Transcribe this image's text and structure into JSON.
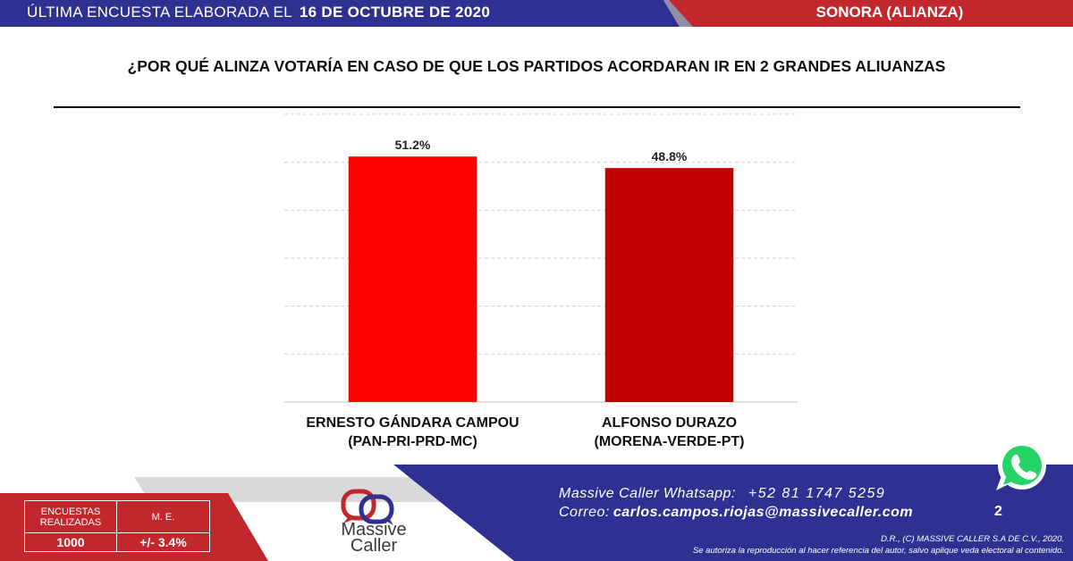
{
  "header": {
    "left_text": "ÚLTIMA ENCUESTA ELABORADA EL",
    "date": "16 DE OCTUBRE DE 2020",
    "region": "SONORA (ALIANZA)"
  },
  "question": "¿POR QUÉ ALINZA VOTARÍA EN CASO DE QUE LOS PARTIDOS ACORDARAN IR EN 2 GRANDES ALIUANZAS",
  "chart_data": {
    "type": "bar",
    "categories": [
      "ERNESTO GÁNDARA CAMPOU\n(PAN-PRI-PRD-MC)",
      "ALFONSO DURAZO\n(MORENA-VERDE-PT)"
    ],
    "category_lines": [
      [
        "ERNESTO GÁNDARA CAMPOU",
        "(PAN-PRI-PRD-MC)"
      ],
      [
        "ALFONSO DURAZO",
        "(MORENA-VERDE-PT)"
      ]
    ],
    "values": [
      51.2,
      48.8
    ],
    "data_labels": [
      "51.2%",
      "48.8%"
    ],
    "colors": [
      "#ff0000",
      "#c00000"
    ],
    "ylim": [
      0,
      60
    ],
    "grid": true,
    "title": "",
    "xlabel": "",
    "ylabel": ""
  },
  "stats": {
    "surveys_label_line1": "ENCUESTAS",
    "surveys_label_line2": "REALIZADAS",
    "margin_label": "M. E.",
    "surveys_value": "1000",
    "margin_value": "+/- 3.4%"
  },
  "logo": {
    "line1": "Massive",
    "line2": "Caller"
  },
  "contact": {
    "whatsapp_label": "Massive Caller Whatsapp:",
    "phone": "+52 81 1747 5259",
    "email_label": "Correo:",
    "email": "carlos.campos.riojas@massivecaller.com",
    "page_number": "2"
  },
  "legal": {
    "line1": "D.R., (C) MASSIVE CALLER S.A DE C.V., 2020.",
    "line2": "Se autoriza la reproducción al hacer referencia del autor, salvo aplique veda electoral al contenido."
  },
  "colors": {
    "navy": "#2e3192",
    "red": "#c1272d",
    "whatsapp_green": "#25d366"
  },
  "icons": [
    "whatsapp-icon",
    "massive-caller-logo"
  ]
}
